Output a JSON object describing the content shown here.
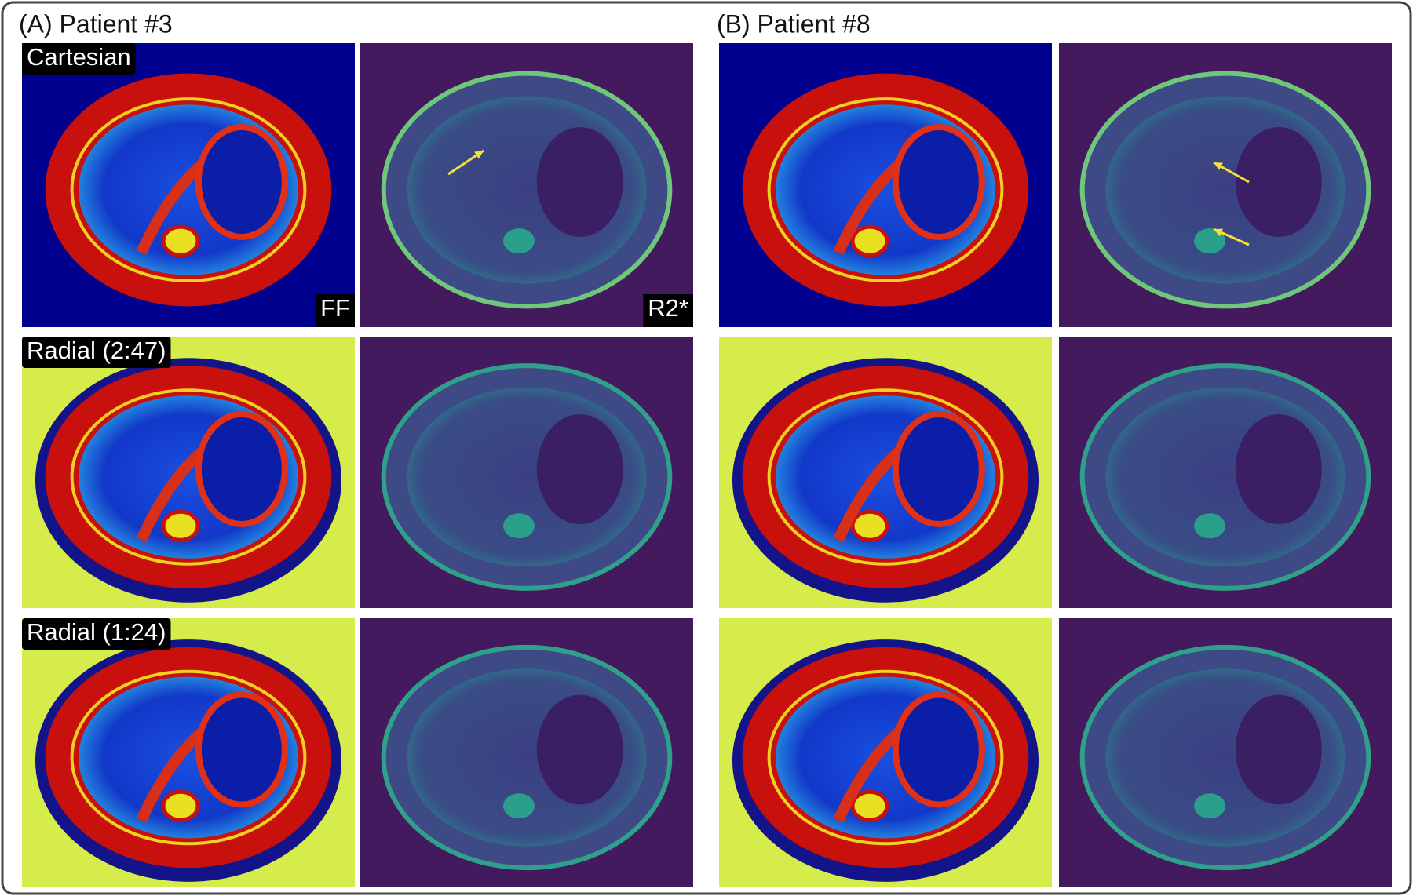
{
  "panel_a": {
    "title": "(A) Patient #3"
  },
  "panel_b": {
    "title": "(B) Patient #8"
  },
  "rows": [
    "Cartesian",
    "Radial (2:47)",
    "Radial (1:24)"
  ],
  "map_labels": [
    "FF",
    "R2*"
  ]
}
